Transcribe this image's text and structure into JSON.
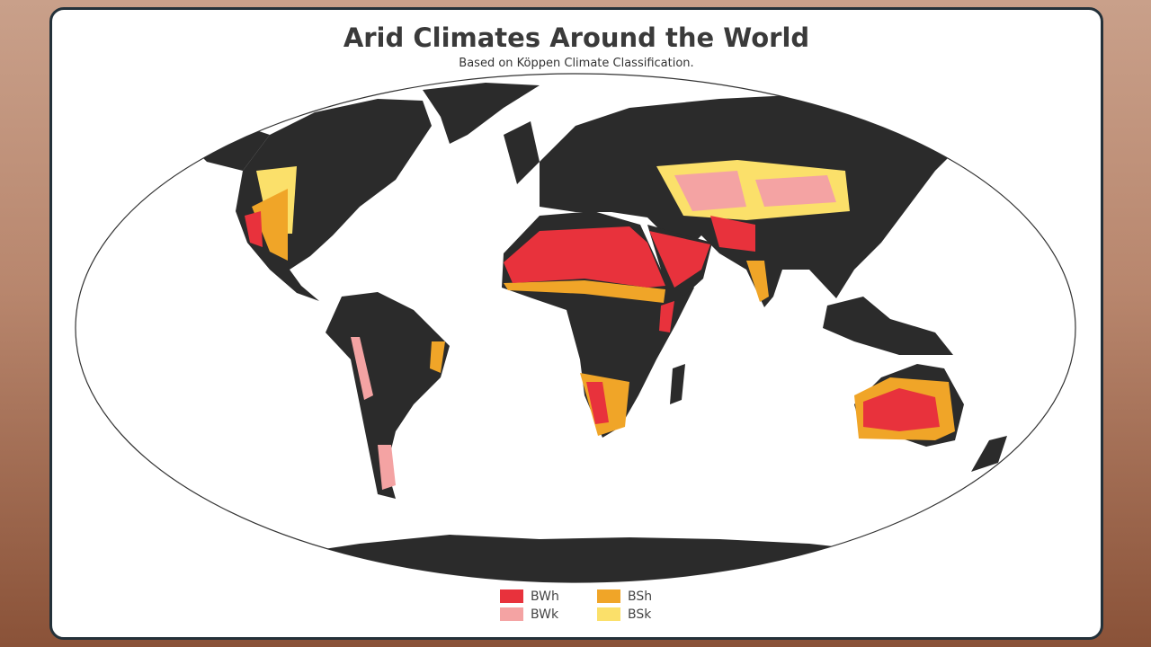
{
  "title": "Arid Climates Around the World",
  "subtitle": "Based on Köppen Climate Classification.",
  "legend": [
    {
      "label": "BWh",
      "color": "#e8323c"
    },
    {
      "label": "BWk",
      "color": "#f4a3a3"
    },
    {
      "label": "BSh",
      "color": "#f0a528"
    },
    {
      "label": "BSk",
      "color": "#fbe06a"
    }
  ]
}
